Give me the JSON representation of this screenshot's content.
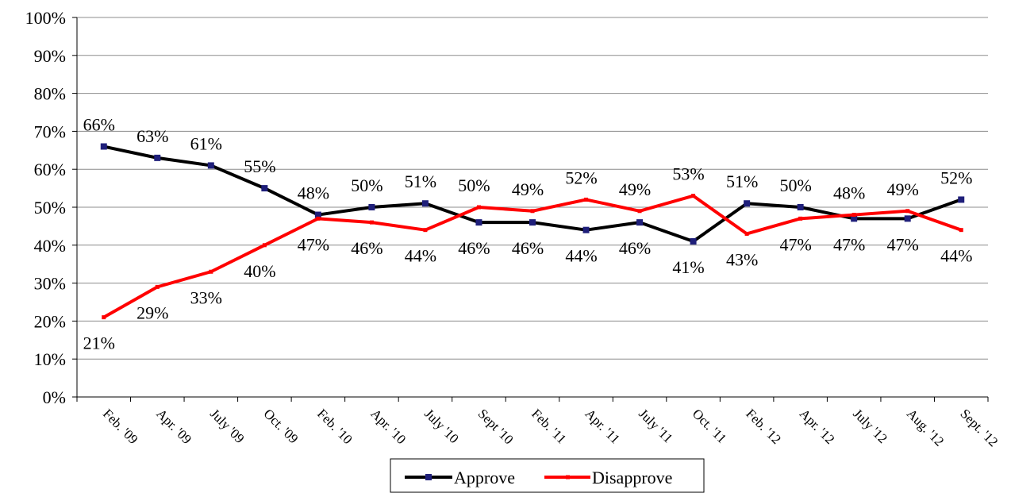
{
  "chart_data": {
    "type": "line",
    "title": "",
    "xlabel": "",
    "ylabel": "",
    "ylim": [
      0,
      100
    ],
    "y_ticks": [
      "0%",
      "10%",
      "20%",
      "30%",
      "40%",
      "50%",
      "60%",
      "70%",
      "80%",
      "90%",
      "100%"
    ],
    "grid": "horizontal",
    "legend_position": "bottom",
    "categories": [
      "Feb. '09",
      "Apr. '09",
      "July '09",
      "Oct. '09",
      "Feb. '10",
      "Apr. '10",
      "July '10",
      "Sept '10",
      "Feb. '11",
      "Apr. '11",
      "July '11",
      "Oct. '11",
      "Feb. '12",
      "Apr. '12",
      "July '12",
      "Aug. '12",
      "Sept. '12"
    ],
    "series": [
      {
        "name": "Approve",
        "color": "#000000",
        "marker_color": "#1f1f7a",
        "values": [
          66,
          63,
          61,
          55,
          48,
          50,
          51,
          46,
          46,
          44,
          46,
          41,
          51,
          50,
          47,
          47,
          52
        ],
        "labels": [
          "66%",
          "63%",
          "61%",
          "55%",
          "48%",
          "50%",
          "51%",
          "46%",
          "46%",
          "44%",
          "46%",
          "41%",
          "51%",
          "50%",
          "47%",
          "47%",
          "52%"
        ]
      },
      {
        "name": "Disapprove",
        "color": "#ff0000",
        "marker_color": "#ff0000",
        "values": [
          21,
          29,
          33,
          40,
          47,
          46,
          44,
          50,
          49,
          52,
          49,
          53,
          43,
          47,
          48,
          49,
          44
        ],
        "labels": [
          "21%",
          "29%",
          "33%",
          "40%",
          "47%",
          "46%",
          "44%",
          "50%",
          "49%",
          "52%",
          "49%",
          "53%",
          "43%",
          "47%",
          "48%",
          "49%",
          "44%"
        ]
      }
    ]
  }
}
